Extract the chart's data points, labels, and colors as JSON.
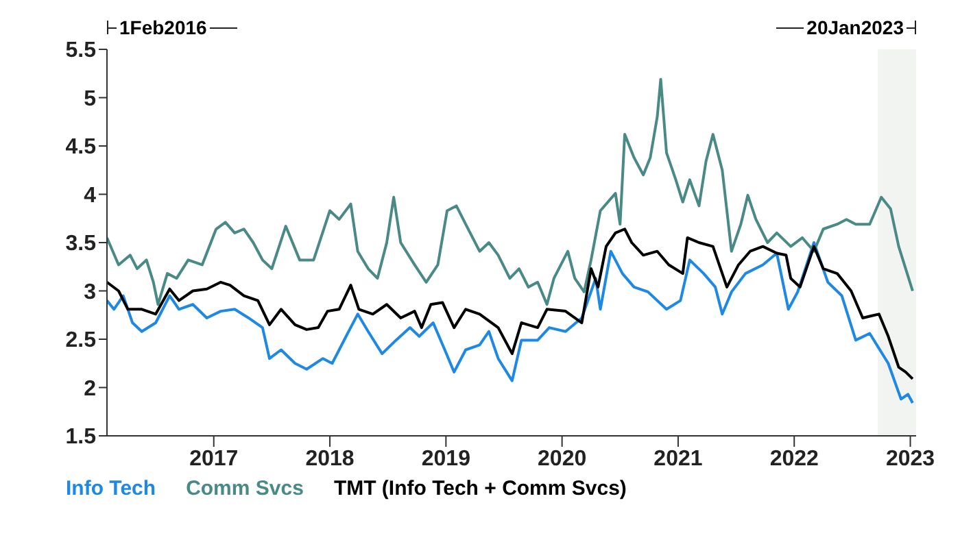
{
  "chart_data": {
    "type": "line",
    "xlim": [
      2016.08,
      2023.05
    ],
    "xticks": [
      2017,
      2018,
      2019,
      2020,
      2021,
      2022,
      2023
    ],
    "ylim": [
      1.5,
      5.5
    ],
    "yticks": [
      1.5,
      2,
      2.5,
      3,
      3.5,
      4,
      4.5,
      5,
      5.5
    ],
    "grid": false,
    "legend": "bottom",
    "line_style": "solid",
    "marker": "none",
    "annotations": [
      "1Feb2016",
      "20Jan2023"
    ],
    "bands": [
      {
        "axis": "x",
        "from": 2022.72,
        "to": 2023.05,
        "color": "#f2f4f2"
      }
    ],
    "series": [
      {
        "name": "Info Tech",
        "color": "#1e88e5",
        "x": [
          2016.08,
          2016.14,
          2016.22,
          2016.3,
          2016.38,
          2016.5,
          2016.62,
          2016.7,
          2016.82,
          2016.94,
          2017.06,
          2017.18,
          2017.3,
          2017.42,
          2017.48,
          2017.58,
          2017.7,
          2017.8,
          2017.94,
          2018.02,
          2018.14,
          2018.24,
          2018.33,
          2018.45,
          2018.57,
          2018.69,
          2018.77,
          2018.89,
          2018.99,
          2019.07,
          2019.17,
          2019.29,
          2019.37,
          2019.45,
          2019.57,
          2019.65,
          2019.79,
          2019.89,
          2020.03,
          2020.17,
          2020.29,
          2020.33,
          2020.42,
          2020.52,
          2020.62,
          2020.74,
          2020.9,
          2021.02,
          2021.1,
          2021.22,
          2021.32,
          2021.38,
          2021.46,
          2021.58,
          2021.73,
          2021.85,
          2021.95,
          2022.03,
          2022.17,
          2022.29,
          2022.41,
          2022.53,
          2022.65,
          2022.81,
          2022.92,
          2022.98,
          2023.02
        ],
        "values": [
          2.9,
          2.81,
          2.95,
          2.67,
          2.58,
          2.67,
          2.95,
          2.81,
          2.86,
          2.72,
          2.79,
          2.81,
          2.72,
          2.62,
          2.3,
          2.39,
          2.25,
          2.19,
          2.3,
          2.25,
          2.53,
          2.76,
          2.58,
          2.35,
          2.49,
          2.62,
          2.53,
          2.67,
          2.39,
          2.16,
          2.39,
          2.44,
          2.58,
          2.3,
          2.07,
          2.49,
          2.49,
          2.62,
          2.58,
          2.72,
          3.13,
          2.81,
          3.41,
          3.18,
          3.04,
          2.99,
          2.81,
          2.9,
          3.32,
          3.18,
          3.04,
          2.76,
          2.99,
          3.18,
          3.27,
          3.39,
          2.81,
          2.99,
          3.5,
          3.09,
          2.95,
          2.49,
          2.56,
          2.25,
          1.88,
          1.93,
          1.84
        ]
      },
      {
        "name": "Comm Svcs",
        "color": "#4a8a86",
        "x": [
          2016.08,
          2016.18,
          2016.28,
          2016.34,
          2016.42,
          2016.48,
          2016.52,
          2016.6,
          2016.68,
          2016.78,
          2016.9,
          2017.02,
          2017.1,
          2017.18,
          2017.26,
          2017.34,
          2017.42,
          2017.5,
          2017.62,
          2017.74,
          2017.86,
          2018.0,
          2018.08,
          2018.18,
          2018.24,
          2018.33,
          2018.41,
          2018.49,
          2018.55,
          2018.61,
          2018.73,
          2018.83,
          2018.93,
          2019.01,
          2019.09,
          2019.17,
          2019.29,
          2019.37,
          2019.45,
          2019.55,
          2019.63,
          2019.71,
          2019.79,
          2019.87,
          2019.93,
          2020.05,
          2020.11,
          2020.19,
          2020.25,
          2020.33,
          2020.46,
          2020.5,
          2020.54,
          2020.62,
          2020.7,
          2020.76,
          2020.82,
          2020.85,
          2020.9,
          2020.98,
          2021.04,
          2021.1,
          2021.18,
          2021.24,
          2021.3,
          2021.38,
          2021.46,
          2021.54,
          2021.6,
          2021.67,
          2021.77,
          2021.85,
          2021.97,
          2022.07,
          2022.17,
          2022.25,
          2022.37,
          2022.45,
          2022.53,
          2022.65,
          2022.75,
          2022.83,
          2022.9,
          2022.96,
          2023.02
        ],
        "values": [
          3.55,
          3.27,
          3.37,
          3.23,
          3.32,
          3.09,
          2.86,
          3.18,
          3.13,
          3.32,
          3.27,
          3.64,
          3.71,
          3.6,
          3.64,
          3.5,
          3.32,
          3.23,
          3.67,
          3.32,
          3.32,
          3.83,
          3.74,
          3.9,
          3.41,
          3.23,
          3.13,
          3.5,
          3.97,
          3.5,
          3.27,
          3.09,
          3.27,
          3.83,
          3.88,
          3.69,
          3.41,
          3.5,
          3.37,
          3.13,
          3.23,
          3.04,
          3.09,
          2.86,
          3.13,
          3.41,
          3.13,
          2.99,
          3.32,
          3.83,
          4.01,
          3.69,
          4.62,
          4.38,
          4.2,
          4.38,
          4.8,
          5.19,
          4.43,
          4.15,
          3.92,
          4.15,
          3.88,
          4.34,
          4.62,
          4.25,
          3.41,
          3.69,
          3.99,
          3.74,
          3.5,
          3.6,
          3.46,
          3.55,
          3.41,
          3.64,
          3.69,
          3.74,
          3.69,
          3.69,
          3.97,
          3.85,
          3.46,
          3.23,
          3.0
        ]
      },
      {
        "name": "TMT (Info Tech + Comm Svcs)",
        "color": "#000000",
        "x": [
          2016.08,
          2016.18,
          2016.26,
          2016.38,
          2016.5,
          2016.62,
          2016.7,
          2016.82,
          2016.94,
          2017.06,
          2017.14,
          2017.26,
          2017.38,
          2017.48,
          2017.58,
          2017.7,
          2017.8,
          2017.9,
          2017.98,
          2018.08,
          2018.18,
          2018.25,
          2018.37,
          2018.49,
          2018.61,
          2018.73,
          2018.79,
          2018.87,
          2018.97,
          2019.07,
          2019.17,
          2019.29,
          2019.45,
          2019.57,
          2019.65,
          2019.79,
          2019.87,
          2020.03,
          2020.17,
          2020.25,
          2020.31,
          2020.38,
          2020.46,
          2020.54,
          2020.6,
          2020.7,
          2020.82,
          2020.92,
          2021.04,
          2021.08,
          2021.18,
          2021.3,
          2021.42,
          2021.52,
          2021.62,
          2021.73,
          2021.85,
          2021.93,
          2021.97,
          2022.05,
          2022.17,
          2022.25,
          2022.37,
          2022.49,
          2022.59,
          2022.73,
          2022.81,
          2022.9,
          2022.96,
          2023.02
        ],
        "values": [
          3.09,
          3.0,
          2.81,
          2.81,
          2.76,
          3.02,
          2.9,
          3.0,
          3.02,
          3.09,
          3.06,
          2.95,
          2.9,
          2.65,
          2.81,
          2.65,
          2.6,
          2.62,
          2.79,
          2.81,
          3.06,
          2.81,
          2.76,
          2.86,
          2.72,
          2.79,
          2.62,
          2.86,
          2.88,
          2.62,
          2.81,
          2.76,
          2.62,
          2.35,
          2.67,
          2.62,
          2.81,
          2.79,
          2.67,
          3.23,
          3.04,
          3.46,
          3.6,
          3.64,
          3.5,
          3.37,
          3.41,
          3.27,
          3.18,
          3.55,
          3.5,
          3.46,
          3.04,
          3.27,
          3.41,
          3.46,
          3.39,
          3.37,
          3.13,
          3.04,
          3.46,
          3.23,
          3.18,
          3.0,
          2.72,
          2.76,
          2.53,
          2.21,
          2.16,
          2.09
        ]
      }
    ]
  }
}
